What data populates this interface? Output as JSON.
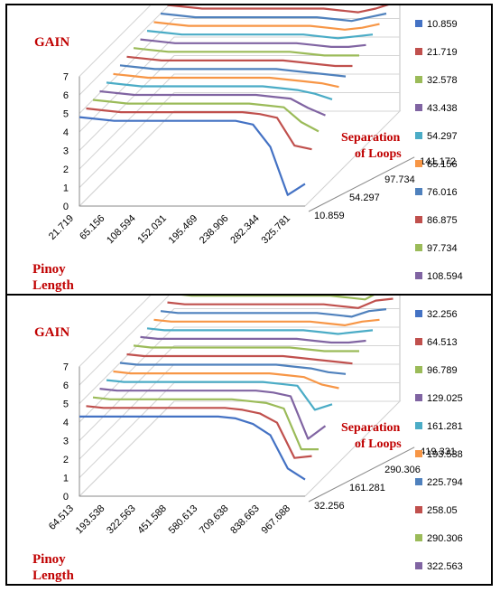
{
  "chart_data": [
    {
      "type": "line",
      "title": "GAIN",
      "ylabel": "GAIN",
      "xlabel_line1": "Pinoy",
      "xlabel_line2": "Length",
      "zlabel_line1": "Separation",
      "zlabel_line2": "of Loops",
      "ylim": [
        0,
        7
      ],
      "y_ticks": [
        "0",
        "1",
        "2",
        "3",
        "4",
        "5",
        "6",
        "7"
      ],
      "x_tick_labels": [
        "21.719",
        "65.156",
        "108.594",
        "152.031",
        "195.469",
        "238.906",
        "282.344",
        "325.781"
      ],
      "z_tick_labels": [
        "10.859",
        "54.297",
        "97.734",
        "141.172"
      ],
      "legend_position": "right",
      "colors": [
        "#4472c4",
        "#c0504d",
        "#9bbb59",
        "#8064a2",
        "#4bacc6",
        "#f79646",
        "#4f81bd",
        "#c0504d",
        "#9bbb59",
        "#8064a2",
        "#4bacc6",
        "#f79646",
        "#4f81bd",
        "#c0504d",
        "#9bbb59"
      ],
      "series": [
        {
          "name": "10.859",
          "values": [
            4.8,
            4.7,
            4.6,
            4.6,
            4.6,
            4.6,
            4.6,
            4.6,
            4.6,
            4.6,
            4.4,
            3.2,
            0.6,
            1.2
          ]
        },
        {
          "name": "21.719",
          "values": [
            4.9,
            4.8,
            4.7,
            4.7,
            4.7,
            4.7,
            4.7,
            4.7,
            4.7,
            4.7,
            4.6,
            4.4,
            2.9,
            2.7
          ]
        },
        {
          "name": "32.578",
          "values": [
            5.0,
            4.9,
            4.8,
            4.8,
            4.8,
            4.8,
            4.8,
            4.8,
            4.8,
            4.8,
            4.7,
            4.6,
            3.8,
            3.3
          ]
        },
        {
          "name": "43.438",
          "values": [
            5.1,
            5.0,
            4.9,
            4.9,
            4.9,
            4.9,
            4.9,
            4.9,
            4.9,
            4.9,
            4.8,
            4.7,
            4.2,
            3.8
          ]
        },
        {
          "name": "54.297",
          "values": [
            5.2,
            5.1,
            5.0,
            5.0,
            5.0,
            5.0,
            5.0,
            5.0,
            5.0,
            5.0,
            4.9,
            4.8,
            4.6,
            4.3
          ]
        },
        {
          "name": "65.156",
          "values": [
            5.3,
            5.2,
            5.1,
            5.1,
            5.1,
            5.1,
            5.1,
            5.1,
            5.1,
            5.1,
            5.0,
            4.9,
            4.8,
            4.6
          ]
        },
        {
          "name": "76.016",
          "values": [
            5.4,
            5.3,
            5.2,
            5.2,
            5.2,
            5.2,
            5.2,
            5.2,
            5.2,
            5.2,
            5.1,
            5.0,
            4.9,
            4.8
          ]
        },
        {
          "name": "86.875",
          "values": [
            5.5,
            5.4,
            5.3,
            5.3,
            5.3,
            5.3,
            5.3,
            5.3,
            5.3,
            5.3,
            5.2,
            5.1,
            5.0,
            5.0
          ]
        },
        {
          "name": "97.734",
          "values": [
            5.6,
            5.5,
            5.4,
            5.4,
            5.4,
            5.4,
            5.4,
            5.4,
            5.4,
            5.4,
            5.3,
            5.2,
            5.2,
            5.2
          ]
        },
        {
          "name": "108.594",
          "values": [
            5.7,
            5.6,
            5.5,
            5.5,
            5.5,
            5.5,
            5.5,
            5.5,
            5.5,
            5.5,
            5.4,
            5.3,
            5.3,
            5.4
          ]
        },
        {
          "name": "",
          "values": [
            5.8,
            5.7,
            5.6,
            5.6,
            5.6,
            5.6,
            5.6,
            5.6,
            5.6,
            5.6,
            5.5,
            5.4,
            5.5,
            5.6
          ]
        },
        {
          "name": "",
          "values": [
            5.9,
            5.8,
            5.7,
            5.7,
            5.7,
            5.7,
            5.7,
            5.7,
            5.7,
            5.7,
            5.6,
            5.5,
            5.6,
            5.8
          ]
        },
        {
          "name": "",
          "values": [
            6.0,
            5.9,
            5.8,
            5.8,
            5.8,
            5.8,
            5.8,
            5.8,
            5.8,
            5.8,
            5.7,
            5.6,
            5.8,
            6.0
          ]
        },
        {
          "name": "",
          "values": [
            6.1,
            6.0,
            5.9,
            5.9,
            5.9,
            5.9,
            5.9,
            5.9,
            5.9,
            5.9,
            5.8,
            5.7,
            5.9,
            6.2
          ]
        },
        {
          "name": "",
          "values": [
            6.2,
            6.1,
            6.0,
            6.0,
            6.0,
            6.0,
            6.0,
            6.0,
            6.0,
            6.0,
            5.9,
            5.8,
            6.0,
            6.4
          ]
        }
      ]
    },
    {
      "type": "line",
      "title": "GAIN",
      "ylabel": "GAIN",
      "xlabel_line1": "Pinoy",
      "xlabel_line2": "Length",
      "zlabel_line1": "Separation",
      "zlabel_line2": "of Loops",
      "ylim": [
        0,
        7
      ],
      "y_ticks": [
        "0",
        "1",
        "2",
        "3",
        "4",
        "5",
        "6",
        "7"
      ],
      "x_tick_labels": [
        "64.513",
        "193.538",
        "322.563",
        "451.588",
        "580.613",
        "709.638",
        "838.663",
        "967.688"
      ],
      "z_tick_labels": [
        "32.256",
        "161.281",
        "290.306",
        "419.331"
      ],
      "legend_position": "right",
      "colors": [
        "#4472c4",
        "#c0504d",
        "#9bbb59",
        "#8064a2",
        "#4bacc6",
        "#f79646",
        "#4f81bd",
        "#c0504d",
        "#9bbb59",
        "#8064a2",
        "#4bacc6",
        "#f79646",
        "#4f81bd",
        "#c0504d",
        "#9bbb59"
      ],
      "series": [
        {
          "name": "32.256",
          "values": [
            4.3,
            4.3,
            4.3,
            4.3,
            4.3,
            4.3,
            4.3,
            4.3,
            4.3,
            4.2,
            3.9,
            3.3,
            1.5,
            0.9
          ]
        },
        {
          "name": "64.513",
          "values": [
            4.5,
            4.4,
            4.4,
            4.4,
            4.4,
            4.4,
            4.4,
            4.4,
            4.4,
            4.3,
            4.1,
            3.6,
            1.7,
            1.8
          ]
        },
        {
          "name": "96.789",
          "values": [
            4.6,
            4.5,
            4.5,
            4.5,
            4.5,
            4.5,
            4.5,
            4.5,
            4.5,
            4.4,
            4.3,
            4.0,
            1.8,
            1.8
          ]
        },
        {
          "name": "129.025",
          "values": [
            4.7,
            4.6,
            4.6,
            4.6,
            4.6,
            4.6,
            4.6,
            4.6,
            4.6,
            4.6,
            4.5,
            4.3,
            2.0,
            2.7
          ]
        },
        {
          "name": "161.281",
          "values": [
            4.8,
            4.7,
            4.7,
            4.7,
            4.7,
            4.7,
            4.7,
            4.7,
            4.7,
            4.7,
            4.6,
            4.5,
            3.2,
            3.5
          ]
        },
        {
          "name": "193.538",
          "values": [
            4.9,
            4.8,
            4.8,
            4.8,
            4.8,
            4.8,
            4.8,
            4.8,
            4.8,
            4.8,
            4.7,
            4.6,
            4.2,
            4.0
          ]
        },
        {
          "name": "225.794",
          "values": [
            5.0,
            4.9,
            4.9,
            4.9,
            4.9,
            4.9,
            4.9,
            4.9,
            4.9,
            4.9,
            4.8,
            4.7,
            4.5,
            4.4
          ]
        },
        {
          "name": "258.05",
          "values": [
            5.1,
            5.0,
            5.0,
            5.0,
            5.0,
            5.0,
            5.0,
            5.0,
            5.0,
            5.0,
            4.9,
            4.8,
            4.7,
            4.6
          ]
        },
        {
          "name": "290.306",
          "values": [
            5.2,
            5.1,
            5.1,
            5.1,
            5.1,
            5.1,
            5.1,
            5.1,
            5.1,
            5.1,
            5.0,
            4.9,
            4.9,
            4.9
          ]
        },
        {
          "name": "322.563",
          "values": [
            5.3,
            5.2,
            5.2,
            5.2,
            5.2,
            5.2,
            5.2,
            5.2,
            5.2,
            5.2,
            5.1,
            5.0,
            5.0,
            5.1
          ]
        },
        {
          "name": "",
          "values": [
            5.4,
            5.3,
            5.3,
            5.3,
            5.3,
            5.3,
            5.3,
            5.3,
            5.3,
            5.3,
            5.2,
            5.1,
            5.2,
            5.3
          ]
        },
        {
          "name": "",
          "values": [
            5.5,
            5.4,
            5.4,
            5.4,
            5.4,
            5.4,
            5.4,
            5.4,
            5.4,
            5.4,
            5.3,
            5.2,
            5.4,
            5.5
          ]
        },
        {
          "name": "",
          "values": [
            5.6,
            5.5,
            5.5,
            5.5,
            5.5,
            5.5,
            5.5,
            5.5,
            5.5,
            5.5,
            5.4,
            5.3,
            5.6,
            5.7
          ]
        },
        {
          "name": "",
          "values": [
            5.7,
            5.6,
            5.6,
            5.6,
            5.6,
            5.6,
            5.6,
            5.6,
            5.6,
            5.6,
            5.5,
            5.4,
            5.8,
            5.9
          ]
        },
        {
          "name": "",
          "values": [
            5.8,
            5.7,
            5.7,
            5.7,
            5.7,
            5.7,
            5.7,
            5.7,
            5.7,
            5.7,
            5.6,
            5.5,
            6.0,
            6.1
          ]
        }
      ]
    }
  ]
}
